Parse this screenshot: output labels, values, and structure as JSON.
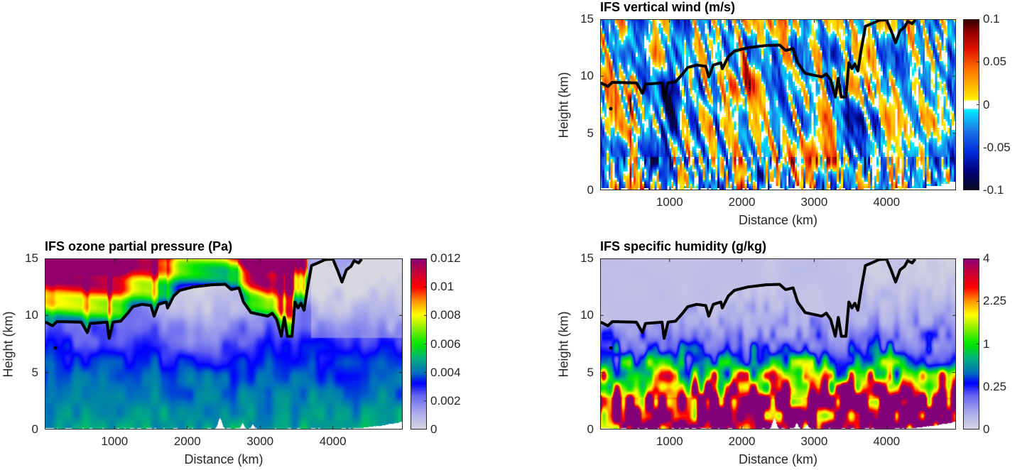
{
  "chart_data": [
    {
      "type": "heatmap",
      "field": "vertical_wind",
      "title": "IFS vertical wind (m/s)",
      "xlabel": "Distance (km)",
      "ylabel": "Height (km)",
      "xlim": [
        40,
        4960
      ],
      "ylim": [
        0,
        15
      ],
      "x_ticks": [
        "1000",
        "2000",
        "3000",
        "4000"
      ],
      "y_ticks": [
        "0",
        "5",
        "10",
        "15"
      ],
      "colorbar": {
        "clim": [
          -0.1,
          0.1
        ],
        "scale": "linear",
        "colormap": "diverging",
        "ticks": [
          "-0.1",
          "-0.05",
          "0",
          "0.05",
          "0.1"
        ]
      }
    },
    {
      "type": "heatmap",
      "field": "ozone_partial_pressure",
      "title": "IFS ozone partial pressure (Pa)",
      "xlabel": "Distance (km)",
      "ylabel": "Height (km)",
      "xlim": [
        40,
        4960
      ],
      "ylim": [
        0,
        15
      ],
      "x_ticks": [
        "1000",
        "2000",
        "3000",
        "4000"
      ],
      "y_ticks": [
        "0",
        "5",
        "10",
        "15"
      ],
      "colorbar": {
        "clim": [
          0,
          0.012
        ],
        "scale": "linear",
        "colormap": "rainbow",
        "ticks": [
          "0",
          "0.002",
          "0.004",
          "0.006",
          "0.008",
          "0.01",
          "0.012"
        ]
      }
    },
    {
      "type": "heatmap",
      "field": "specific_humidity",
      "title": "IFS specific humidity (g/kg)",
      "xlabel": "Distance (km)",
      "ylabel": "Height (km)",
      "xlim": [
        40,
        4960
      ],
      "ylim": [
        0,
        15
      ],
      "x_ticks": [
        "1000",
        "2000",
        "3000",
        "4000"
      ],
      "y_ticks": [
        "0",
        "5",
        "10",
        "15"
      ],
      "colorbar": {
        "clim": [
          0,
          4
        ],
        "scale": "sqrt",
        "colormap": "rainbow",
        "ticks": [
          "0",
          "0.25",
          "1",
          "2.25",
          "4"
        ]
      }
    }
  ],
  "overlay": {
    "tropopause_line": {
      "distance_km": [
        50,
        146,
        208,
        542,
        625,
        667,
        896,
        925,
        979,
        1083,
        1187,
        1250,
        1375,
        1500,
        1542,
        1604,
        1708,
        1729,
        1812,
        1896,
        2083,
        2333,
        2521,
        2604,
        2708,
        2771,
        2875,
        3104,
        3167,
        3229,
        3292,
        3333,
        3375,
        3438,
        3479,
        3521,
        3562,
        3604,
        3646,
        3708,
        3792,
        3896,
        4000,
        4062,
        4125,
        4187,
        4250,
        4292,
        4354,
        4396
      ],
      "height_km": [
        9.42,
        9.1,
        9.46,
        9.42,
        8.5,
        9.3,
        9.42,
        8.0,
        9.42,
        9.5,
        10.25,
        10.76,
        10.97,
        10.87,
        9.94,
        10.97,
        11.18,
        10.66,
        11.7,
        12.2,
        12.5,
        12.69,
        12.73,
        12.27,
        12.42,
        11.18,
        10.25,
        9.94,
        10.2,
        9.63,
        8.18,
        9.83,
        8.18,
        8.18,
        11.18,
        10.66,
        11.07,
        10.45,
        12.2,
        14.38,
        14.6,
        14.9,
        15,
        14.0,
        12.93,
        14.0,
        14.3,
        14.8,
        14.6,
        15
      ]
    },
    "marker": {
      "distance_km": 188,
      "height_km": 7.15
    }
  }
}
